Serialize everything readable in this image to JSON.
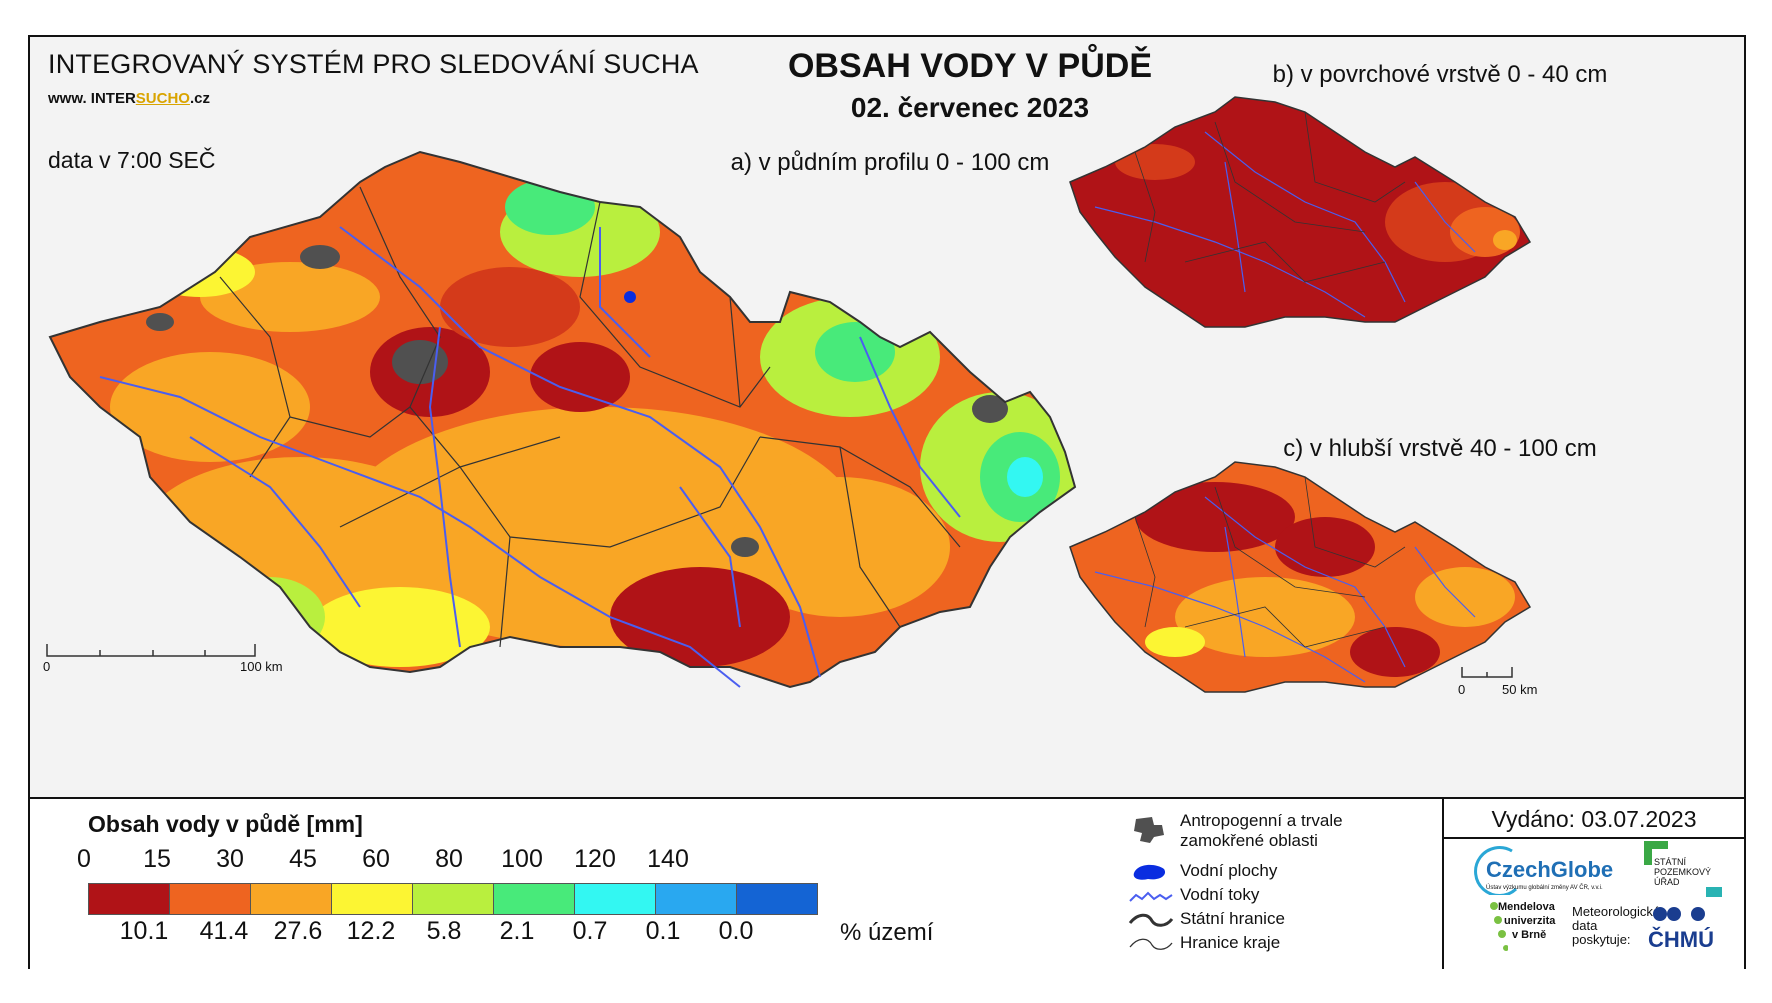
{
  "header": {
    "system_title": "INTEGROVANÝ SYSTÉM PRO SLEDOVÁNÍ SUCHA",
    "website_prefix": "www. INTER",
    "website_highlight": "SUCHO",
    "website_suffix": ".cz",
    "time_note": "data v 7:00 SEČ",
    "main_title": "OBSAH VODY V PŮDĚ",
    "date": "02. červenec 2023"
  },
  "maps": {
    "a": {
      "caption": "a) v půdním profilu 0 - 100 cm",
      "scale_start": "0",
      "scale_end": "100 km"
    },
    "b": {
      "caption": "b) v povrchové vrstvě 0 - 40 cm"
    },
    "c": {
      "caption": "c) v hlubší vrstvě 40 - 100 cm",
      "scale_start": "0",
      "scale_end": "50 km"
    }
  },
  "legend": {
    "title": "Obsah vody v půdě  [mm]",
    "ticks": [
      "0",
      "15",
      "30",
      "45",
      "60",
      "80",
      "100",
      "120",
      "140"
    ],
    "colors": [
      "#b01317",
      "#ee6420",
      "#f9a625",
      "#fcf533",
      "#b9ef3e",
      "#48ea7a",
      "#33f7f2",
      "#29a8f0",
      "#1464d4"
    ],
    "percent_values": [
      "10.1",
      "41.4",
      "27.6",
      "12.2",
      "5.8",
      "2.1",
      "0.7",
      "0.1",
      "0.0"
    ],
    "percent_unit": "% území"
  },
  "symbols": {
    "anthropogenic": "Antropogenní a trvale zamokřené oblasti",
    "water_bodies": "Vodní plochy",
    "rivers": "Vodní toky",
    "state_border": "Státní hranice",
    "region_border": "Hranice kraje",
    "colors": {
      "anthropogenic": "#505050",
      "water": "#0a2de0",
      "river": "#4a5ef0"
    }
  },
  "footer": {
    "issued": "Vydáno: 03.07.2023",
    "logo_czechglobe": "CzechGlobe",
    "logo_czechglobe_sub": "Ústav výzkumu globální změny AV ČR, v.v.i.",
    "logo_spu_1": "STÁTNÍ",
    "logo_spu_2": "POZEMKOVÝ",
    "logo_spu_3": "ÚŘAD",
    "logo_mendel_1": "Mendelova",
    "logo_mendel_2": "univerzita",
    "logo_mendel_3": "v Brně",
    "met_note_1": "Meteorologická",
    "met_note_2": "data",
    "met_note_3": "poskytuje:",
    "logo_chmu": "ČHMÚ"
  },
  "map_colors": {
    "dark_red": "#b01317",
    "orange": "#ee6420",
    "light_orange": "#f9a625",
    "yellow": "#fcf533",
    "light_green": "#b9ef3e",
    "green": "#48ea7a",
    "cyan": "#33f7f2",
    "border": "#333333"
  }
}
